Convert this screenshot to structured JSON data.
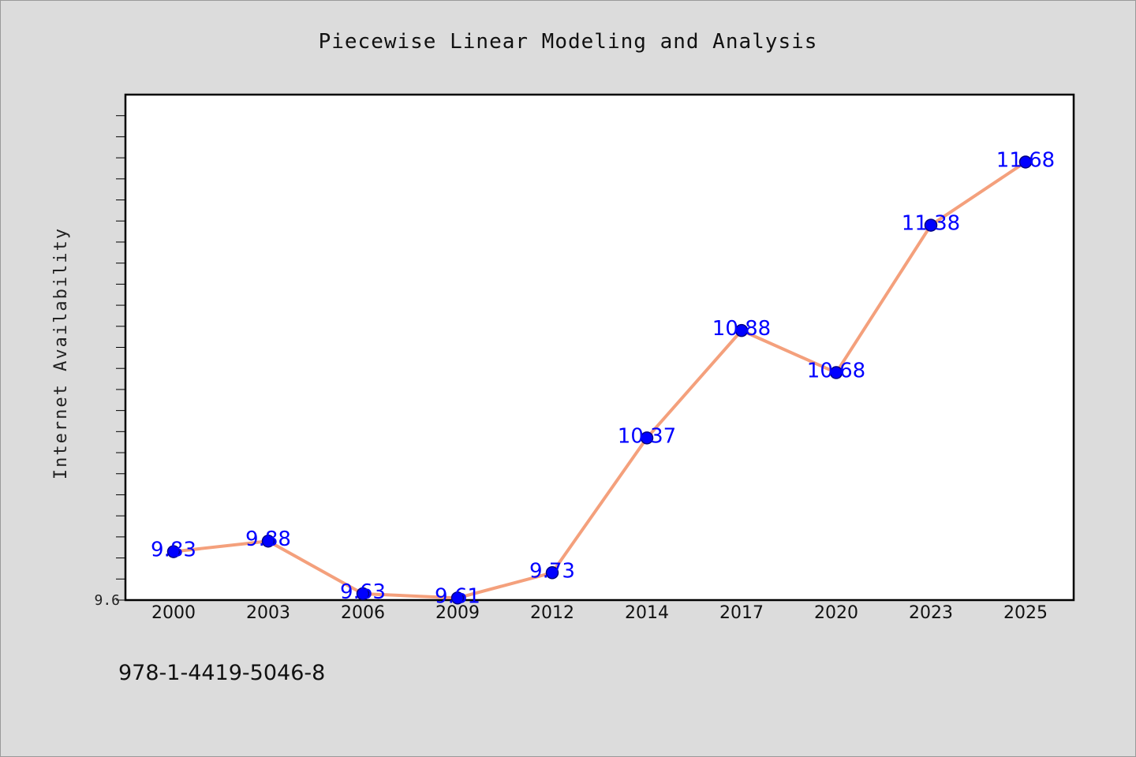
{
  "chart_data": {
    "type": "line",
    "title": "Piecewise Linear Modeling and Analysis",
    "xlabel": "",
    "ylabel": "Internet Availability",
    "categories": [
      "2000",
      "2003",
      "2006",
      "2009",
      "2012",
      "2014",
      "2017",
      "2020",
      "2023",
      "2025"
    ],
    "series": [
      {
        "values": [
          9.83,
          9.88,
          9.63,
          9.61,
          9.73,
          10.37,
          10.88,
          10.68,
          11.38,
          11.68
        ]
      }
    ],
    "data_labels": [
      "9.83",
      "9.88",
      "9.63",
      "9.61",
      "9.73",
      "10.37",
      "10.88",
      "10.68",
      "11.38",
      "11.68"
    ],
    "y_tick_label": "9.6",
    "ylim": [
      9.6,
      12.0
    ],
    "minor_tick_step": 0.1,
    "grid": false,
    "legend": "none",
    "colors": {
      "line": "#f4a07c",
      "marker": "#0000ff",
      "marker_edge": "#000080",
      "label": "#0000ff"
    }
  },
  "footer_text": "978-1-4419-5046-8"
}
